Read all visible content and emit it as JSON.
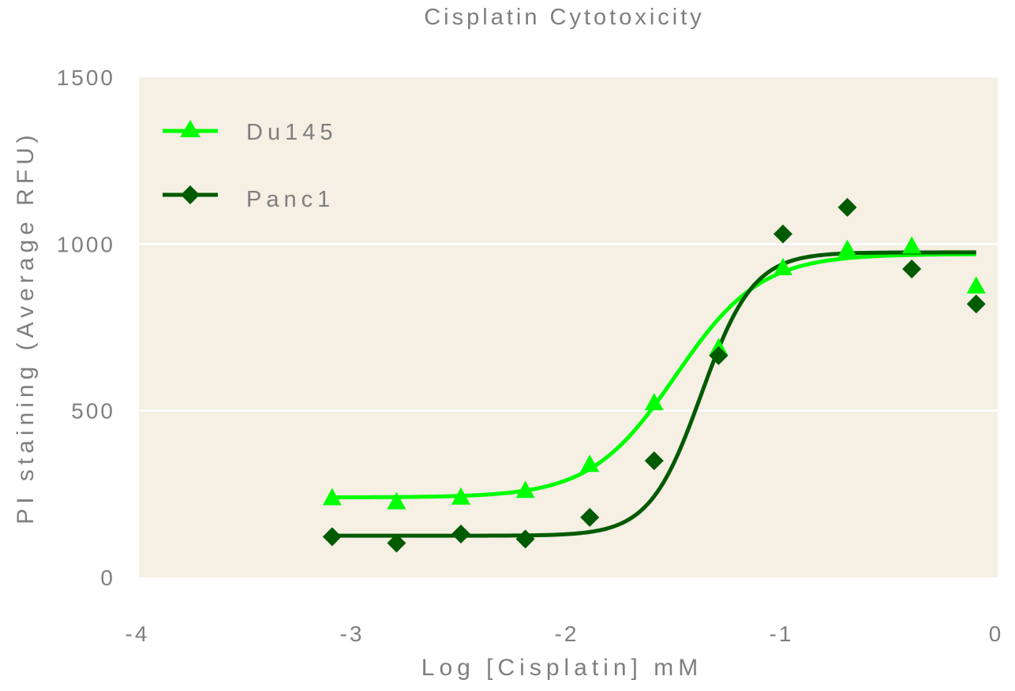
{
  "chart_data": {
    "type": "scatter",
    "title": "Cisplatin Cytotoxicity",
    "xlabel": "Log [Cisplatin] mM",
    "ylabel": "PI staining (Average RFU)",
    "xlim": [
      -4,
      0
    ],
    "ylim": [
      0,
      1500
    ],
    "x_ticks": [
      "-4",
      "-3",
      "-2",
      "-1",
      "0"
    ],
    "y_ticks": [
      "0",
      "500",
      "1000",
      "1500"
    ],
    "grid": true,
    "legend_position": "top-left",
    "plot_background": "#f5efe4",
    "series": [
      {
        "name": "Du145",
        "color": "#00ff00",
        "marker": "triangle",
        "points": [
          [
            -3.1,
            240
          ],
          [
            -2.8,
            228
          ],
          [
            -2.5,
            242
          ],
          [
            -2.2,
            262
          ],
          [
            -1.9,
            340
          ],
          [
            -1.6,
            525
          ],
          [
            -1.3,
            690
          ],
          [
            -1.0,
            930
          ],
          [
            -0.7,
            985
          ],
          [
            -0.4,
            995
          ],
          [
            -0.1,
            875
          ]
        ],
        "fit": {
          "bottom": 240,
          "top": 970,
          "logEC50": -1.5,
          "hill": 2.2
        }
      },
      {
        "name": "Panc1",
        "color": "#005a00",
        "marker": "diamond",
        "points": [
          [
            -3.1,
            122
          ],
          [
            -2.8,
            103
          ],
          [
            -2.5,
            130
          ],
          [
            -2.2,
            115
          ],
          [
            -1.9,
            180
          ],
          [
            -1.6,
            350
          ],
          [
            -1.3,
            665
          ],
          [
            -1.0,
            1030
          ],
          [
            -0.7,
            1110
          ],
          [
            -0.4,
            925
          ],
          [
            -0.1,
            820
          ]
        ],
        "fit": {
          "bottom": 125,
          "top": 975,
          "logEC50": -1.38,
          "hill": 3.6
        }
      }
    ]
  }
}
